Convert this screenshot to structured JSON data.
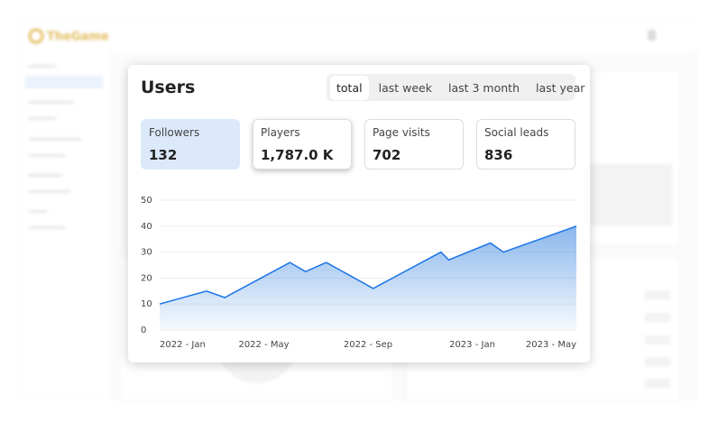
{
  "brand": "TheGame",
  "card": {
    "title": "Users",
    "tabs": [
      "total",
      "last week",
      "last 3 month",
      "last year"
    ],
    "stats": [
      {
        "label": "Followers",
        "value": "132"
      },
      {
        "label": "Players",
        "value": "1,787.0 K"
      },
      {
        "label": "Page visits",
        "value": "702"
      },
      {
        "label": "Social leads",
        "value": "836"
      }
    ]
  },
  "chart_data": {
    "type": "area",
    "color": "#1a73e8",
    "grid": true,
    "x": [
      0,
      1.8,
      2.5,
      5,
      5.6,
      6.4,
      8.2,
      10.8,
      11.1,
      12.7,
      13.2,
      16
    ],
    "values": [
      10,
      15,
      12.5,
      26,
      22.5,
      26,
      16,
      30,
      27,
      33.5,
      30,
      40
    ],
    "xlim": [
      0,
      16
    ],
    "xticks": [
      {
        "value": 0,
        "label": "2022 - Jan"
      },
      {
        "value": 4,
        "label": "2022 - May"
      },
      {
        "value": 8,
        "label": "2022 - Sep"
      },
      {
        "value": 12,
        "label": "2023 - Jan"
      },
      {
        "value": 16,
        "label": "2023 - May"
      }
    ],
    "ylim": [
      0,
      50
    ],
    "yticks": [
      0,
      10,
      20,
      30,
      40,
      50
    ]
  }
}
